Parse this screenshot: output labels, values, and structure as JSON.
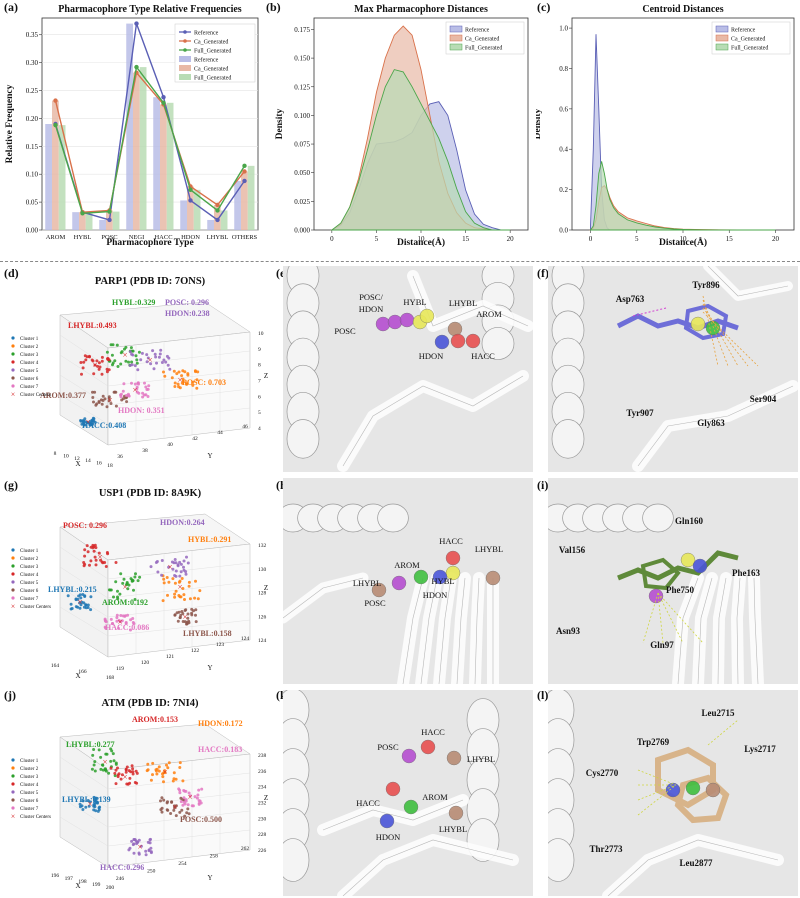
{
  "panel_labels": [
    "(a)",
    "(b)",
    "(c)",
    "(d)",
    "(e)",
    "(f)",
    "(g)",
    "(h)",
    "(i)",
    "(j)",
    "(k)",
    "(l)"
  ],
  "colors": {
    "reference": "#5a5fb5",
    "ca": "#d9714a",
    "full": "#4aa64a",
    "reference_fill": "#b9bde6",
    "ca_fill": "#e8b9a6",
    "full_fill": "#b8dcb4"
  },
  "chart_data": [
    {
      "type": "bar+line",
      "title": "Pharmacophore Type Relative Frequencies",
      "xlabel": "Pharmacophore Type",
      "ylabel": "Relative Frequency",
      "ylim": [
        0,
        0.38
      ],
      "yticks": [
        "0.00",
        "0.05",
        "0.10",
        "0.15",
        "0.20",
        "0.25",
        "0.30",
        "0.35"
      ],
      "categories": [
        "AROM",
        "HYBL",
        "POSC",
        "NEGI",
        "HACC",
        "HDON",
        "LHYBL",
        "OTHERS"
      ],
      "series": [
        {
          "name": "Reference",
          "values": [
            0.19,
            0.032,
            0.018,
            0.37,
            0.238,
            0.053,
            0.018,
            0.088
          ]
        },
        {
          "name": "Ca_Generated",
          "values": [
            0.232,
            0.032,
            0.035,
            0.282,
            0.225,
            0.078,
            0.045,
            0.105
          ]
        },
        {
          "name": "Full_Generated",
          "values": [
            0.188,
            0.03,
            0.033,
            0.292,
            0.228,
            0.072,
            0.035,
            0.115
          ]
        }
      ],
      "legend": [
        "Reference",
        "Ca_Generated",
        "Full_Generated",
        "Reference",
        "Ca_Generated",
        "Full_Generated"
      ],
      "legend_position": "top-right"
    },
    {
      "type": "area",
      "title": "Max Pharmacophore Distances",
      "xlabel": "Distance(Å)",
      "ylabel": "Density",
      "xlim": [
        -2,
        22
      ],
      "ylim": [
        0,
        0.185
      ],
      "xticks": [
        "0",
        "5",
        "10",
        "15",
        "20"
      ],
      "yticks": [
        "0.000",
        "0.025",
        "0.050",
        "0.075",
        "0.100",
        "0.125",
        "0.150",
        "0.175"
      ],
      "x": [
        0,
        1,
        2,
        3,
        4,
        5,
        6,
        7,
        8,
        9,
        10,
        11,
        12,
        13,
        14,
        15,
        16,
        17,
        18,
        19,
        20
      ],
      "series": [
        {
          "name": "Reference",
          "values": [
            0,
            0.004,
            0.015,
            0.035,
            0.058,
            0.075,
            0.076,
            0.077,
            0.08,
            0.085,
            0.1,
            0.11,
            0.112,
            0.1,
            0.07,
            0.035,
            0.014,
            0.005,
            0.002,
            0,
            0
          ]
        },
        {
          "name": "Ca_Generated",
          "values": [
            0,
            0.005,
            0.02,
            0.045,
            0.08,
            0.12,
            0.15,
            0.17,
            0.178,
            0.17,
            0.14,
            0.1,
            0.06,
            0.032,
            0.015,
            0.006,
            0.002,
            0.001,
            0,
            0,
            0
          ]
        },
        {
          "name": "Full_Generated",
          "values": [
            0,
            0.006,
            0.02,
            0.042,
            0.07,
            0.1,
            0.125,
            0.14,
            0.138,
            0.125,
            0.11,
            0.095,
            0.08,
            0.06,
            0.036,
            0.016,
            0.006,
            0.002,
            0,
            0,
            0
          ]
        }
      ],
      "legend": [
        "Reference",
        "Ca_Generated",
        "Full_Generated"
      ],
      "legend_position": "top-right"
    },
    {
      "type": "area",
      "title": "Centroid Distances",
      "xlabel": "Distance(Å)",
      "ylabel": "Density",
      "xlim": [
        -2,
        22
      ],
      "ylim": [
        0,
        1.05
      ],
      "xticks": [
        "0",
        "5",
        "10",
        "15",
        "20"
      ],
      "yticks": [
        "0.0",
        "0.2",
        "0.4",
        "0.6",
        "0.8",
        "1.0"
      ],
      "x": [
        0,
        0.3,
        0.6,
        0.9,
        1.2,
        1.5,
        1.8,
        2.1,
        2.5,
        3,
        4,
        5,
        6,
        7,
        8,
        9,
        10,
        12,
        14,
        16,
        20
      ],
      "series": [
        {
          "name": "Reference",
          "values": [
            0.02,
            0.4,
            0.97,
            0.6,
            0.2,
            0.05,
            0.01,
            0,
            0,
            0,
            0,
            0,
            0,
            0,
            0,
            0,
            0,
            0,
            0,
            0,
            0
          ]
        },
        {
          "name": "Ca_Generated",
          "values": [
            0,
            0.01,
            0.05,
            0.14,
            0.21,
            0.22,
            0.2,
            0.16,
            0.12,
            0.09,
            0.06,
            0.045,
            0.032,
            0.02,
            0.012,
            0.007,
            0.004,
            0.002,
            0.001,
            0,
            0
          ]
        },
        {
          "name": "Full_Generated",
          "values": [
            0,
            0.02,
            0.12,
            0.28,
            0.34,
            0.28,
            0.2,
            0.15,
            0.11,
            0.08,
            0.05,
            0.035,
            0.024,
            0.015,
            0.009,
            0.005,
            0.003,
            0.001,
            0,
            0,
            0
          ]
        }
      ],
      "legend": [
        "Reference",
        "Ca_Generated",
        "Full_Generated"
      ],
      "legend_position": "top-right"
    },
    {
      "type": "scatter",
      "title": "PARP1 (PDB ID: 7ONS)",
      "legend": [
        "Cluster 1",
        "Cluster 2",
        "Cluster 3",
        "Cluster 4",
        "Cluster 5",
        "Cluster 6",
        "Cluster 7",
        "Cluster Centers"
      ],
      "axis_labels": [
        "X",
        "Y",
        "Z"
      ],
      "xticks": [
        "8",
        "10",
        "12",
        "14",
        "16",
        "18"
      ],
      "yticks": [
        "36",
        "38",
        "40",
        "42",
        "44",
        "46"
      ],
      "zticks": [
        "4",
        "5",
        "6",
        "7",
        "8",
        "9",
        "10"
      ],
      "annotations": [
        {
          "text": "HYBL:0.329",
          "color": "#2ca02c"
        },
        {
          "text": "POSC: 0.296",
          "color": "#9467bd"
        },
        {
          "text": "HDON:0.238",
          "color": "#9467bd"
        },
        {
          "text": "LHYBL:0.493",
          "color": "#d62728"
        },
        {
          "text": "AROM:0.377",
          "color": "#8c564b"
        },
        {
          "text": "POSC: 0.703",
          "color": "#ff7f0e"
        },
        {
          "text": "HDON: 0.351",
          "color": "#e377c2"
        },
        {
          "text": "HACC:0.408",
          "color": "#1f77b4"
        }
      ]
    },
    {
      "type": "scatter",
      "title": "USP1 (PDB ID: 8A9K)",
      "legend": [
        "Cluster 1",
        "Cluster 2",
        "Cluster 3",
        "Cluster 4",
        "Cluster 5",
        "Cluster 6",
        "Cluster 7",
        "Cluster Centers"
      ],
      "axis_labels": [
        "X",
        "Y",
        "Z"
      ],
      "xticks": [
        "164",
        "166",
        "168"
      ],
      "yticks": [
        "119",
        "120",
        "121",
        "122",
        "123",
        "124"
      ],
      "zticks": [
        "124",
        "126",
        "128",
        "130",
        "132"
      ],
      "annotations": [
        {
          "text": "POSC: 0.296",
          "color": "#d62728"
        },
        {
          "text": "HDON:0.264",
          "color": "#9467bd"
        },
        {
          "text": "HYBL:0.291",
          "color": "#ff7f0e"
        },
        {
          "text": "LHYBL:0.215",
          "color": "#1f77b4"
        },
        {
          "text": "AROM:0.192",
          "color": "#2ca02c"
        },
        {
          "text": "HACC:0.086",
          "color": "#e377c2"
        },
        {
          "text": "LHYBL:0.158",
          "color": "#8c564b"
        }
      ]
    },
    {
      "type": "scatter",
      "title": "ATM (PDB ID: 7NI4)",
      "legend": [
        "Cluster 1",
        "Cluster 2",
        "Cluster 3",
        "Cluster 4",
        "Cluster 5",
        "Cluster 6",
        "Cluster 7",
        "Cluster Centers"
      ],
      "axis_labels": [
        "X",
        "Y",
        "Z"
      ],
      "xticks": [
        "196",
        "197",
        "198",
        "199",
        "200"
      ],
      "yticks": [
        "246",
        "250",
        "254",
        "258",
        "262"
      ],
      "zticks": [
        "226",
        "228",
        "230",
        "232",
        "234",
        "236",
        "238"
      ],
      "annotations": [
        {
          "text": "AROM:0.153",
          "color": "#d62728"
        },
        {
          "text": "HDON:0.172",
          "color": "#ff7f0e"
        },
        {
          "text": "LHYBL:0.277",
          "color": "#2ca02c"
        },
        {
          "text": "HACC:0.183",
          "color": "#e377c2"
        },
        {
          "text": "LHYBL:0.139",
          "color": "#1f77b4"
        },
        {
          "text": "POSC:0.500",
          "color": "#8c564b"
        },
        {
          "text": "HACC:0.296",
          "color": "#9467bd"
        }
      ]
    }
  ],
  "structures": {
    "e": [
      "POSC/",
      "HDON",
      "HYBL",
      "LHYBL",
      "AROM",
      "POSC",
      "HDON",
      "HACC"
    ],
    "f": [
      "Asp763",
      "Tyr896",
      "Tyr907",
      "Ser904",
      "Gly863"
    ],
    "h": [
      "HACC",
      "LHYBL",
      "AROM",
      "HYBL",
      "LHYBL",
      "HDON",
      "POSC"
    ],
    "i": [
      "Gln160",
      "Val156",
      "Phe163",
      "Phe750",
      "Asn93",
      "Gln97"
    ],
    "k": [
      "HACC",
      "POSC",
      "LHYBL",
      "HACC",
      "AROM",
      "HDON",
      "LHYBL"
    ],
    "l": [
      "Leu2715",
      "Trp2769",
      "Lys2717",
      "Cys2770",
      "Thr2773",
      "Leu2877"
    ]
  }
}
